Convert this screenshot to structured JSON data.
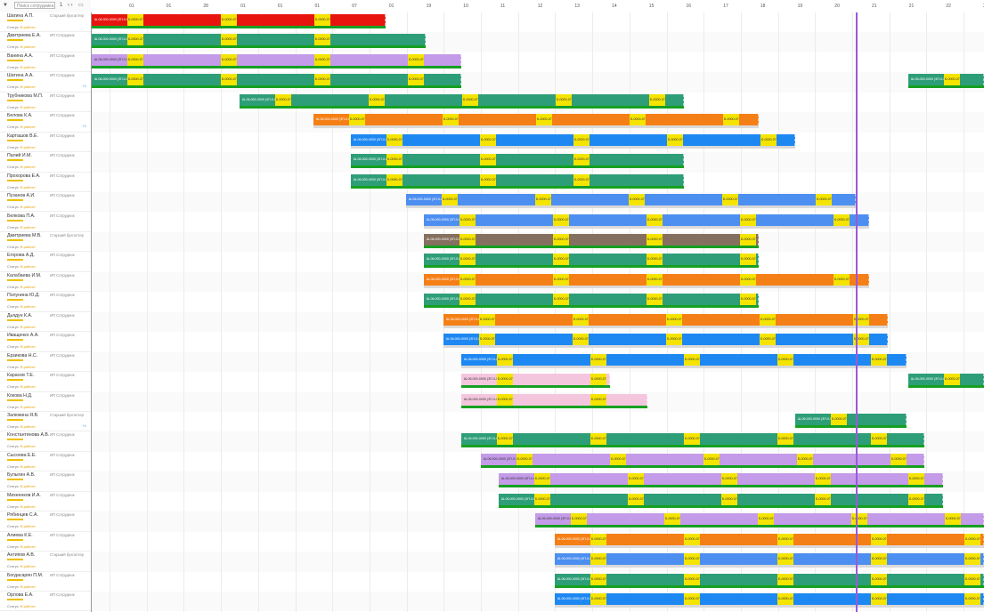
{
  "toolbar": {
    "icon": "filter-icon",
    "filter_text": "Поиск сотрудника",
    "count": "1",
    "nav_icon": "calendar-icon"
  },
  "ruler_ticks": [
    "01",
    "01",
    "28",
    "01",
    "01",
    "01",
    "07",
    "01",
    "19",
    "10",
    "11",
    "12",
    "13",
    "14",
    "15",
    "16",
    "17",
    "18",
    "19",
    "20",
    "21",
    "21",
    "22",
    "23"
  ],
  "row_defaults": {
    "tag": "Ожидание",
    "status_prefix": "Статус: ",
    "status_value": "В работе"
  },
  "rows": [
    {
      "name": "Шагина А.П.",
      "role": "Старший бухгалтер",
      "flag": ""
    },
    {
      "name": "Дмитриева Е.А.",
      "role": "ИП Сотрудник",
      "flag": ""
    },
    {
      "name": "Ванина А.А.",
      "role": "ИП Сотрудник",
      "flag": ""
    },
    {
      "name": "Шатина А.А.",
      "role": "ИП Сотрудник",
      "flag": "+1"
    },
    {
      "name": "Трубникова М.П.",
      "role": "ИП Сотрудник",
      "flag": ""
    },
    {
      "name": "Белова К.А.",
      "role": "ИП Сотрудник",
      "flag": "+1"
    },
    {
      "name": "Карташов В.Е.",
      "role": "ИП Сотрудник",
      "flag": ""
    },
    {
      "name": "Палий И.М.",
      "role": "ИП Сотрудник",
      "flag": ""
    },
    {
      "name": "Прохорова Е.А.",
      "role": "ИП Сотрудник",
      "flag": ""
    },
    {
      "name": "Пузанов А.И.",
      "role": "ИП Сотрудник",
      "flag": ""
    },
    {
      "name": "Белкова П.А.",
      "role": "ИП Сотрудник",
      "flag": ""
    },
    {
      "name": "Дмитриева М.В.",
      "role": "Старший бухгалтер",
      "flag": ""
    },
    {
      "name": "Егорова А.Д.",
      "role": "ИП Сотрудник",
      "flag": ""
    },
    {
      "name": "Калабаева И.М.",
      "role": "ИП Сотрудник",
      "flag": ""
    },
    {
      "name": "Полунина Ю.Д.",
      "role": "ИП Сотрудник",
      "flag": ""
    },
    {
      "name": "Дьядун К.А.",
      "role": "ИП Сотрудник",
      "flag": ""
    },
    {
      "name": "Иващенко А.А.",
      "role": "ИП Сотрудник",
      "flag": ""
    },
    {
      "name": "Ерзикова Н.С.",
      "role": "ИП Сотрудник",
      "flag": ""
    },
    {
      "name": "Карасев Т.Е.",
      "role": "ИП Сотрудник",
      "flag": ""
    },
    {
      "name": "Кокова Н.Д.",
      "role": "ИП Сотрудник",
      "flag": ""
    },
    {
      "name": "Залюкина Я.В.",
      "role": "Старший бухгалтер",
      "flag": "+1"
    },
    {
      "name": "Константинова А.В.",
      "role": "ИП Сотрудник",
      "flag": ""
    },
    {
      "name": "Сысоева Е.Е.",
      "role": "ИП Сотрудник",
      "flag": ""
    },
    {
      "name": "Булыгин А.В.",
      "role": "ИП Сотрудник",
      "flag": ""
    },
    {
      "name": "Михеенков И.А.",
      "role": "ИП Сотрудник",
      "flag": ""
    },
    {
      "name": "Рябинцев С.А.",
      "role": "ИП Сотрудник",
      "flag": ""
    },
    {
      "name": "Алиева К.Е.",
      "role": "ИП Сотрудник",
      "flag": ""
    },
    {
      "name": "Антипов А.В.",
      "role": "Старший бухгалтер",
      "flag": ""
    },
    {
      "name": "Богдасарян П.М.",
      "role": "ИП Сотрудник",
      "flag": ""
    },
    {
      "name": "Орлова Е.А.",
      "role": "ИП Сотрудник",
      "flag": ""
    }
  ],
  "colors": {
    "red": "#e8150f",
    "green": "#2e9e78",
    "purple": "#c39be8",
    "orange": "#f57f17",
    "blue": "#1e88f2",
    "lightblue": "#4d8ff0",
    "brown": "#85705f",
    "pink": "#f4c6de",
    "yellow": "#f5e400",
    "darkgreen": "#16a021",
    "now": "#9b59d8"
  },
  "task_label": "Ш-06-000-0000 (ЗП-0-0000)",
  "marker_label": "Б-0000-07",
  "schedule": [
    [
      [
        "red",
        0,
        330
      ]
    ],
    [
      [
        "green",
        0,
        375
      ]
    ],
    [
      [
        "purple",
        0,
        415
      ]
    ],
    [
      [
        "green",
        0,
        415
      ],
      [
        "green",
        917,
        1002
      ]
    ],
    [
      [
        "green",
        166,
        665
      ]
    ],
    [
      [
        "orange",
        249,
        749
      ]
    ],
    [
      [
        "blue",
        291,
        790
      ]
    ],
    [
      [
        "green",
        291,
        665
      ]
    ],
    [
      [
        "green",
        291,
        665
      ]
    ],
    [
      [
        "lightblue",
        353,
        858
      ]
    ],
    [
      [
        "lightblue",
        373,
        873
      ]
    ],
    [
      [
        "brown",
        373,
        749
      ]
    ],
    [
      [
        "green",
        373,
        749
      ]
    ],
    [
      [
        "orange",
        373,
        873
      ]
    ],
    [
      [
        "green",
        373,
        749
      ]
    ],
    [
      [
        "orange",
        395,
        894
      ]
    ],
    [
      [
        "blue",
        395,
        894
      ]
    ],
    [
      [
        "blue",
        415,
        915
      ]
    ],
    [
      [
        "pink",
        415,
        582
      ],
      [
        "green",
        917,
        1002
      ]
    ],
    [
      [
        "pink",
        415,
        624
      ]
    ],
    [
      [
        "green",
        790,
        915
      ]
    ],
    [
      [
        "green",
        415,
        935
      ]
    ],
    [
      [
        "purple",
        437,
        935
      ]
    ],
    [
      [
        "purple",
        457,
        956
      ]
    ],
    [
      [
        "green",
        457,
        956
      ]
    ],
    [
      [
        "purple",
        498,
        1002
      ]
    ],
    [
      [
        "orange",
        520,
        1002
      ]
    ],
    [
      [
        "lightblue",
        520,
        1002
      ]
    ],
    [
      [
        "green",
        520,
        1002
      ]
    ],
    [
      [
        "blue",
        520,
        1002
      ]
    ]
  ]
}
